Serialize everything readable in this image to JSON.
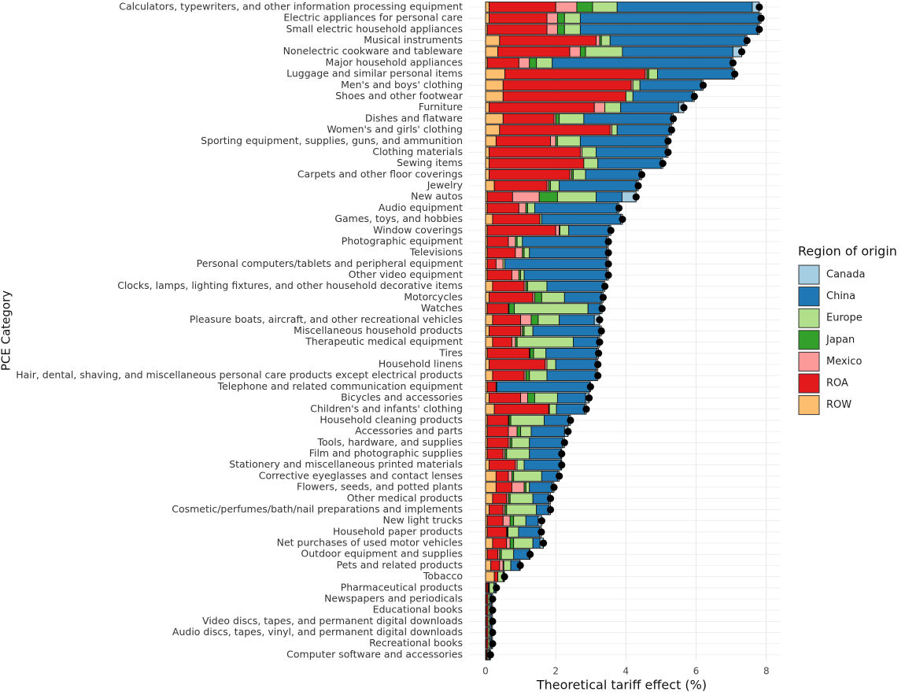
{
  "chart_data": {
    "type": "stacked-bar-horizontal",
    "x_label": "Theoretical tariff effect (%)",
    "y_label": "PCE Category",
    "legend_title": "Region of origin",
    "xlim": [
      -0.5,
      8.4
    ],
    "xticks": [
      0,
      2,
      4,
      6,
      8
    ],
    "grid": true,
    "legend_position": "right",
    "categories": [
      "Calculators, typewriters, and other information processing equipment",
      "Electric appliances for personal care",
      "Small electric household appliances",
      "Musical instruments",
      "Nonelectric cookware and tableware",
      "Major household appliances",
      "Luggage and similar personal items",
      "Men's and boys' clothing",
      "Shoes and other footwear",
      "Furniture",
      "Dishes and flatware",
      "Women's and girls' clothing",
      "Sporting equipment, supplies, guns, and ammunition",
      "Clothing materials",
      "Sewing items",
      "Carpets and other floor coverings",
      "Jewelry",
      "New autos",
      "Audio equipment",
      "Games, toys, and hobbies",
      "Window coverings",
      "Photographic equipment",
      "Televisions",
      "Personal computers/tablets and peripheral equipment",
      "Other video equipment",
      "Clocks, lamps, lighting fixtures, and other household decorative items",
      "Motorcycles",
      "Watches",
      "Pleasure boats, aircraft, and other recreational vehicles",
      "Miscellaneous household products",
      "Therapeutic medical equipment",
      "Tires",
      "Household linens",
      "Hair, dental, shaving, and miscellaneous personal care products except electrical products",
      "Telephone and related communication equipment",
      "Bicycles and accessories",
      "Children's and infants' clothing",
      "Household cleaning products",
      "Accessories and parts",
      "Tools, hardware, and supplies",
      "Film and photographic supplies",
      "Stationery and miscellaneous printed materials",
      "Corrective eyeglasses and contact lenses",
      "Flowers, seeds, and potted plants",
      "Other medical products",
      "Cosmetic/perfumes/bath/nail preparations and implements",
      "New light trucks",
      "Household paper products",
      "Net purchases of used motor vehicles",
      "Outdoor equipment and supplies",
      "Pets and related products",
      "Tobacco",
      "Pharmaceutical products",
      "Newspapers and periodicals",
      "Educational books",
      "Video discs, tapes, and permanent digital downloads",
      "Audio discs, tapes, vinyl, and permanent digital downloads",
      "Recreational books",
      "Computer software and accessories"
    ],
    "series": [
      {
        "name": "Canada",
        "color": "#a6cee3",
        "values": [
          0.2,
          0.05,
          0.05,
          0.05,
          0.25,
          0.05,
          0.05,
          0.05,
          0.05,
          0.15,
          0.05,
          0.05,
          0.05,
          0.05,
          0.05,
          0.05,
          0.05,
          0.4,
          0.05,
          0.05,
          0.05,
          0.05,
          0.05,
          0.05,
          0.05,
          0.05,
          0.05,
          0.05,
          0.15,
          0.05,
          0.05,
          0.05,
          0.05,
          0.05,
          0.02,
          0.1,
          0.05,
          0.05,
          0.1,
          0.05,
          0.02,
          0.02,
          0.05,
          0.05,
          0.05,
          0.05,
          0.1,
          0.05,
          0.1,
          0.02,
          0.02,
          0.02,
          0.02,
          0.03,
          0.03,
          0.03,
          0.03,
          0.03,
          0.02
        ]
      },
      {
        "name": "China",
        "color": "#1f78b4",
        "values": [
          3.85,
          5.1,
          5.05,
          3.85,
          3.15,
          5.1,
          2.15,
          1.75,
          1.7,
          1.65,
          2.5,
          1.5,
          2.45,
          2.0,
          1.8,
          1.55,
          2.2,
          0.74,
          2.35,
          2.25,
          1.15,
          2.4,
          2.2,
          2.9,
          2.35,
          1.6,
          1.05,
          0.35,
          1.0,
          1.9,
          0.7,
          1.45,
          1.15,
          1.4,
          2.65,
          0.8,
          0.8,
          0.7,
          0.95,
          0.95,
          0.9,
          1.05,
          0.45,
          0.65,
          0.45,
          0.35,
          0.35,
          0.6,
          0.2,
          0.45,
          0.25,
          0.02,
          0.05,
          0.05,
          0.05,
          0.05,
          0.05,
          0.05,
          0.03
        ]
      },
      {
        "name": "Europe",
        "color": "#b2df8a",
        "values": [
          0.7,
          0.45,
          0.45,
          0.25,
          1.05,
          0.45,
          0.25,
          0.2,
          0.2,
          0.45,
          0.7,
          0.15,
          0.65,
          0.4,
          0.4,
          0.35,
          0.25,
          1.1,
          0.2,
          0.05,
          0.25,
          0.15,
          0.15,
          0.05,
          0.1,
          0.55,
          0.65,
          2.1,
          0.6,
          0.25,
          1.6,
          0.35,
          0.25,
          0.5,
          0.02,
          0.65,
          0.2,
          0.95,
          0.3,
          0.5,
          0.65,
          0.2,
          0.8,
          0.1,
          0.65,
          0.85,
          0.35,
          0.3,
          0.55,
          0.35,
          0.2,
          0.15,
          0.13,
          0.05,
          0.05,
          0.05,
          0.05,
          0.05,
          0.04
        ]
      },
      {
        "name": "Japan",
        "color": "#33a02c",
        "values": [
          0.45,
          0.2,
          0.2,
          0.05,
          0.15,
          0.2,
          0.05,
          0,
          0,
          0,
          0.1,
          0,
          0.05,
          0,
          0,
          0.05,
          0.05,
          0.52,
          0.05,
          0,
          0.02,
          0.05,
          0.05,
          0,
          0.05,
          0.05,
          0.2,
          0.15,
          0.2,
          0.05,
          0.05,
          0.1,
          0,
          0.1,
          0,
          0.2,
          0,
          0.05,
          0.1,
          0.05,
          0.05,
          0,
          0.05,
          0.05,
          0.05,
          0.05,
          0.1,
          0.02,
          0.1,
          0.05,
          0.02,
          0,
          0.02,
          0,
          0,
          0,
          0,
          0,
          0
        ]
      },
      {
        "name": "Mexico",
        "color": "#fb9a99",
        "values": [
          0.6,
          0.3,
          0.3,
          0.1,
          0.3,
          0.3,
          0.05,
          0.05,
          0,
          0.3,
          0.05,
          0.05,
          0.15,
          0.05,
          0,
          0.05,
          0.05,
          0.76,
          0.2,
          0,
          0.1,
          0.2,
          0.2,
          0.2,
          0.2,
          0.05,
          0.05,
          0.02,
          0.3,
          0.05,
          0.1,
          0.02,
          0.05,
          0.05,
          0,
          0.2,
          0.02,
          0.02,
          0.25,
          0.05,
          0.05,
          0.05,
          0.1,
          0.35,
          0.05,
          0.05,
          0.2,
          0.02,
          0.1,
          0.05,
          0.1,
          0,
          0.02,
          0,
          0,
          0,
          0,
          0,
          0
        ]
      },
      {
        "name": "ROA",
        "color": "#e31a1c",
        "values": [
          1.9,
          1.65,
          1.7,
          2.75,
          2.05,
          0.9,
          4.0,
          3.65,
          3.5,
          3.0,
          1.45,
          3.15,
          1.55,
          2.6,
          2.7,
          2.3,
          1.5,
          0.72,
          0.9,
          1.35,
          1.95,
          0.6,
          0.8,
          0.25,
          0.7,
          0.9,
          1.25,
          0.6,
          0.8,
          0.9,
          0.55,
          1.2,
          1.6,
          0.9,
          0.25,
          0.9,
          1.55,
          0.6,
          0.6,
          0.6,
          0.45,
          0.75,
          0.35,
          0.45,
          0.4,
          0.4,
          0.45,
          0.55,
          0.4,
          0.3,
          0.25,
          0.1,
          0.05,
          0.05,
          0.05,
          0.05,
          0.05,
          0.05,
          0.03
        ]
      },
      {
        "name": "ROW",
        "color": "#fdbf6f",
        "values": [
          0.1,
          0.1,
          0.05,
          0.4,
          0.35,
          0.05,
          0.55,
          0.5,
          0.5,
          0.1,
          0.5,
          0.4,
          0.3,
          0.1,
          0.1,
          0.1,
          0.25,
          0.05,
          0.05,
          0.2,
          0.05,
          0.05,
          0.05,
          0.05,
          0.05,
          0.2,
          0.1,
          0.05,
          0.2,
          0.1,
          0.2,
          0.05,
          0.1,
          0.2,
          0.05,
          0.1,
          0.25,
          0.05,
          0.05,
          0.05,
          0.05,
          0.1,
          0.3,
          0.3,
          0.2,
          0.1,
          0.05,
          0.05,
          0.2,
          0.05,
          0.15,
          0.25,
          0.02,
          0.02,
          0.02,
          0.02,
          0.02,
          0.02,
          0.02
        ]
      }
    ]
  }
}
